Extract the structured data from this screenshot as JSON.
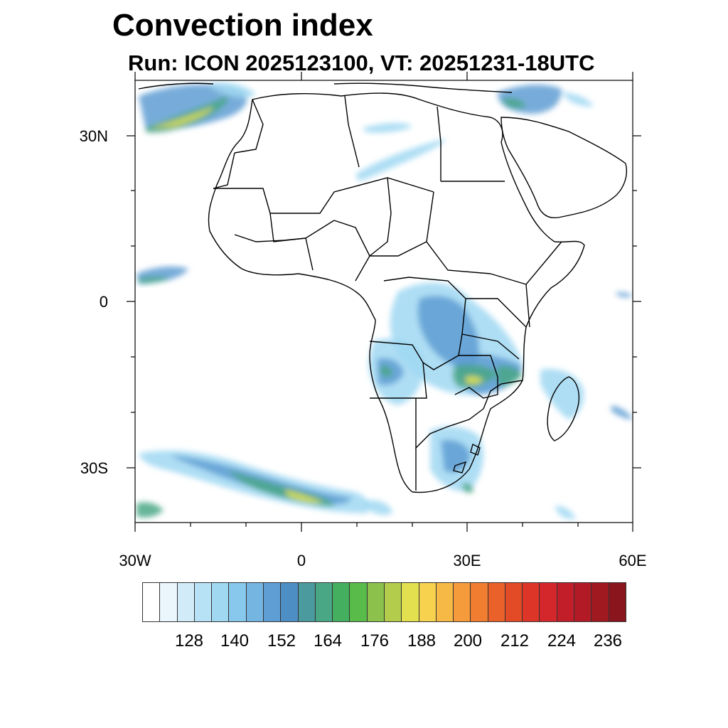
{
  "title": "Convection index",
  "subtitle": "Run: ICON 2025123100,  VT: 20251231-18UTC",
  "axes": {
    "lat_labels": [
      "30N",
      "0",
      "30S"
    ],
    "lon_labels": [
      "30W",
      "0",
      "30E",
      "60E"
    ]
  },
  "colorbar": {
    "colors": [
      "#ffffff",
      "#eaf5fc",
      "#d1ebf8",
      "#b7e1f5",
      "#a0d8f2",
      "#88c8ec",
      "#75b5e1",
      "#5f9ed4",
      "#4d8fc4",
      "#4a9a9e",
      "#4aa786",
      "#44b05f",
      "#58bb4a",
      "#8cc24b",
      "#b3cc4b",
      "#e2e04f",
      "#f6d24e",
      "#f7b945",
      "#f59b3b",
      "#f07d30",
      "#ea6129",
      "#e34a26",
      "#dd3629",
      "#d3272c",
      "#c21e2a",
      "#b21a26",
      "#a01820",
      "#8a151c"
    ],
    "labels": [
      "128",
      "140",
      "152",
      "164",
      "176",
      "188",
      "200",
      "212",
      "224",
      "236"
    ]
  },
  "legend_key": {
    "low": "#a0d8f2",
    "mid": "#5f9ed4",
    "high": "#4aa786",
    "peak": "#e2e04f"
  }
}
